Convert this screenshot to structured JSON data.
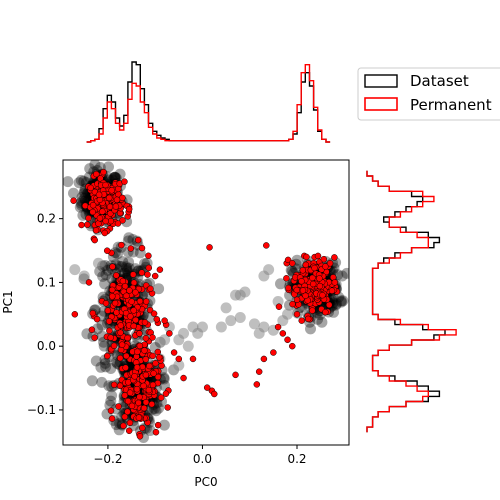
{
  "chart_data": {
    "type": "scatter",
    "xlabel": "PC0",
    "ylabel": "PC1",
    "xlim": [
      -0.295,
      0.31
    ],
    "ylim": [
      -0.155,
      0.292
    ],
    "x_ticks": [
      -0.2,
      0.0,
      0.2
    ],
    "x_tick_labels": [
      "−0.2",
      "0.0",
      "0.2"
    ],
    "y_ticks": [
      -0.1,
      0.0,
      0.1,
      0.2
    ],
    "y_tick_labels": [
      "−0.1",
      "0.0",
      "0.1",
      "0.2"
    ],
    "grid": false,
    "legend": {
      "placement": "top-right (outside)",
      "entries": [
        {
          "label": "Dataset",
          "color": "#000000"
        },
        {
          "label": "Permanent",
          "color": "#ff0000"
        }
      ]
    },
    "series": [
      {
        "name": "Dataset",
        "color": "#000000",
        "marker_alpha": 0.35,
        "clusters": [
          {
            "center": [
              -0.215,
              0.235
            ],
            "spread": [
              0.02,
              0.02
            ]
          },
          {
            "center": [
              -0.165,
              0.06
            ],
            "spread": [
              0.03,
              0.045
            ]
          },
          {
            "center": [
              -0.14,
              -0.065
            ],
            "spread": [
              0.025,
              0.035
            ]
          },
          {
            "center": [
              0.24,
              0.09
            ],
            "spread": [
              0.025,
              0.02
            ]
          }
        ],
        "points": [
          [
            -0.27,
            0.12
          ],
          [
            -0.25,
            0.11
          ],
          [
            -0.22,
            0.13
          ],
          [
            -0.07,
            0.03
          ],
          [
            -0.05,
            0.01
          ],
          [
            -0.03,
            0.0
          ],
          [
            -0.04,
            0.02
          ],
          [
            -0.08,
            0.01
          ],
          [
            -0.02,
            0.03
          ],
          [
            0.07,
            0.08
          ],
          [
            0.08,
            0.08
          ],
          [
            0.09,
            0.085
          ],
          [
            0.06,
            0.04
          ],
          [
            0.08,
            0.045
          ],
          [
            0.12,
            0.02
          ],
          [
            0.13,
            0.03
          ],
          [
            0.15,
            0.025
          ],
          [
            0.18,
            0.05
          ],
          [
            0.11,
            0.035
          ],
          [
            0.13,
            0.11
          ],
          [
            -0.05,
            -0.03
          ],
          [
            0.0,
            0.03
          ],
          [
            -0.01,
            0.02
          ],
          [
            0.14,
            0.12
          ],
          [
            0.05,
            0.06
          ],
          [
            0.04,
            0.03
          ],
          [
            0.17,
            0.04
          ],
          [
            0.2,
            0.06
          ],
          [
            0.16,
            0.07
          ],
          [
            -0.09,
            -0.02
          ]
        ]
      },
      {
        "name": "Permanent",
        "color": "#ff0000",
        "clusters": [
          {
            "center": [
              -0.205,
              0.225
            ],
            "spread": [
              0.018,
              0.02
            ]
          },
          {
            "center": [
              -0.16,
              0.05
            ],
            "spread": [
              0.028,
              0.04
            ]
          },
          {
            "center": [
              -0.135,
              -0.06
            ],
            "spread": [
              0.022,
              0.035
            ]
          },
          {
            "center": [
              0.235,
              0.095
            ],
            "spread": [
              0.022,
              0.022
            ]
          }
        ],
        "points": [
          [
            0.015,
            0.155
          ],
          [
            0.135,
            0.158
          ],
          [
            0.16,
            0.03
          ],
          [
            0.17,
            0.02
          ],
          [
            0.18,
            0.01
          ],
          [
            0.19,
            0.0
          ],
          [
            0.15,
            -0.01
          ],
          [
            0.13,
            -0.02
          ],
          [
            0.12,
            -0.04
          ],
          [
            0.115,
            -0.06
          ],
          [
            0.07,
            -0.045
          ],
          [
            0.02,
            -0.07
          ],
          [
            0.01,
            -0.065
          ],
          [
            0.025,
            -0.075
          ],
          [
            -0.04,
            -0.05
          ],
          [
            -0.05,
            -0.02
          ],
          [
            -0.06,
            -0.01
          ],
          [
            -0.02,
            -0.02
          ],
          [
            -0.07,
            0.02
          ],
          [
            -0.08,
            0.04
          ],
          [
            -0.11,
            0.09
          ],
          [
            -0.1,
            0.11
          ],
          [
            -0.09,
            0.12
          ],
          [
            -0.27,
            0.05
          ],
          [
            -0.24,
            0.1
          ],
          [
            -0.175,
            0.255
          ],
          [
            -0.165,
            0.258
          ],
          [
            -0.16,
            0.22
          ],
          [
            -0.155,
            0.215
          ],
          [
            0.21,
            0.04
          ],
          [
            0.2,
            0.05
          ],
          [
            0.26,
            0.125
          ],
          [
            0.27,
            0.13
          ],
          [
            0.19,
            0.13
          ],
          [
            0.22,
            0.14
          ],
          [
            0.28,
            0.1
          ]
        ]
      }
    ],
    "marginal_x": {
      "dataset": [
        0,
        1,
        2,
        10,
        25,
        35,
        30,
        18,
        12,
        20,
        45,
        60,
        58,
        40,
        28,
        14,
        8,
        5,
        3,
        2,
        1,
        1,
        1,
        1,
        1,
        1,
        1,
        1,
        1,
        1,
        1,
        1,
        1,
        1,
        1,
        1,
        1,
        1,
        1,
        1,
        1,
        1,
        1,
        1,
        1,
        1,
        1,
        1,
        1,
        2,
        6,
        22,
        45,
        52,
        42,
        24,
        8,
        2,
        0
      ],
      "permanent": [
        0,
        1,
        2,
        6,
        18,
        30,
        25,
        14,
        9,
        14,
        32,
        44,
        42,
        30,
        22,
        11,
        6,
        3,
        2,
        1,
        1,
        1,
        1,
        1,
        1,
        1,
        1,
        1,
        1,
        1,
        1,
        1,
        1,
        1,
        1,
        1,
        1,
        1,
        1,
        1,
        1,
        1,
        1,
        1,
        1,
        1,
        1,
        1,
        1,
        2,
        8,
        28,
        52,
        58,
        46,
        26,
        9,
        2,
        0
      ]
    },
    "marginal_y": {
      "dataset": [
        0,
        1,
        2,
        4,
        8,
        10,
        9,
        7,
        5,
        3,
        4,
        7,
        11,
        13,
        12,
        8,
        5,
        3,
        2,
        1,
        1,
        1,
        1,
        1,
        1,
        1,
        1,
        1,
        2,
        5,
        10,
        14,
        12,
        8,
        4,
        2,
        1,
        1,
        1,
        2,
        5,
        9,
        11,
        13,
        11,
        7,
        4,
        2,
        1,
        1,
        0
      ],
      "permanent": [
        0,
        1,
        2,
        4,
        10,
        12,
        10,
        8,
        6,
        4,
        4,
        6,
        9,
        11,
        11,
        8,
        6,
        4,
        2,
        1,
        1,
        1,
        1,
        1,
        1,
        1,
        1,
        1,
        2,
        6,
        11,
        16,
        13,
        8,
        4,
        2,
        1,
        1,
        1,
        2,
        4,
        7,
        9,
        11,
        10,
        7,
        4,
        2,
        1,
        1,
        0
      ]
    }
  }
}
